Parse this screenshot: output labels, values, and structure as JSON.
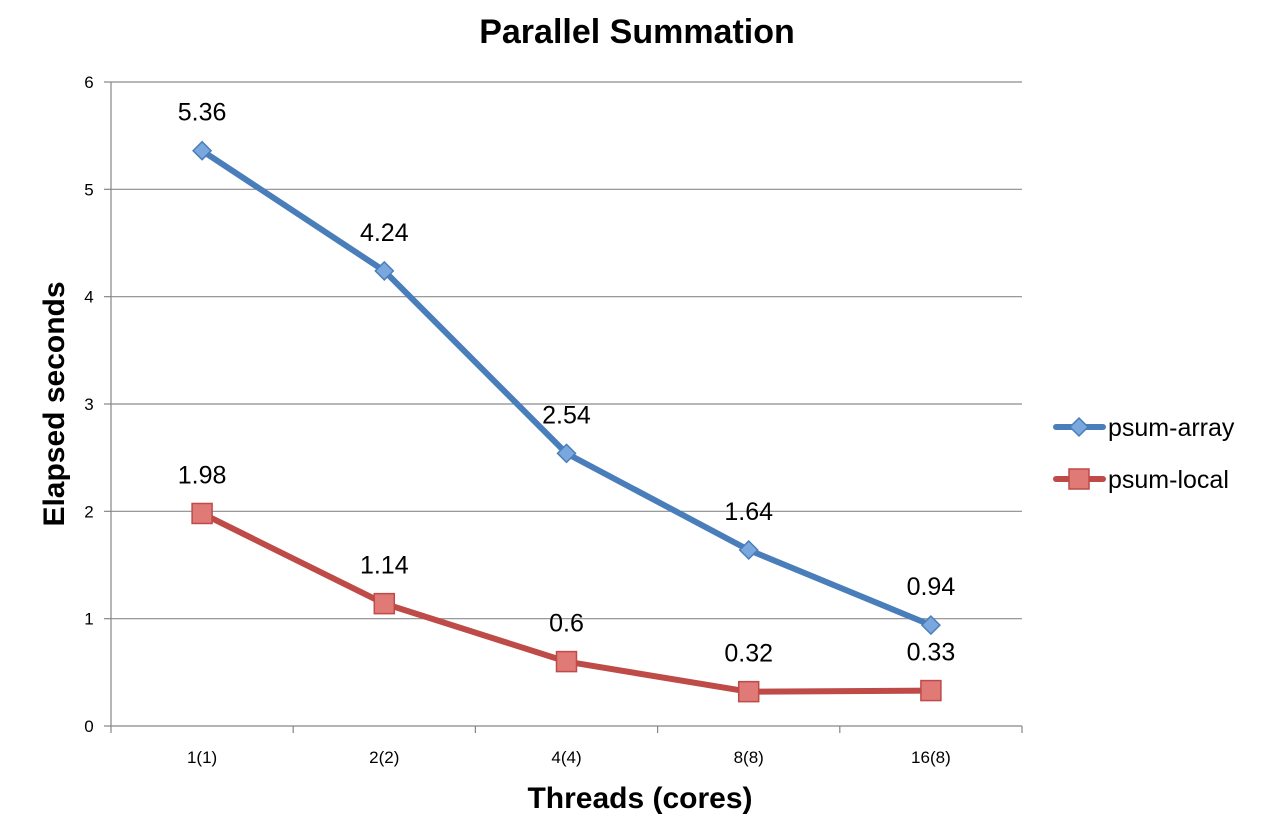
{
  "chart_data": {
    "type": "line",
    "title": "Parallel Summation",
    "xlabel": "Threads (cores)",
    "ylabel": "Elapsed seconds",
    "categories": [
      "1(1)",
      "2(2)",
      "4(4)",
      "8(8)",
      "16(8)"
    ],
    "ylim": [
      0,
      6
    ],
    "yticks": [
      0,
      1,
      2,
      3,
      4,
      5,
      6
    ],
    "grid": true,
    "legend_position": "right",
    "series": [
      {
        "name": "psum-array",
        "values": [
          5.36,
          4.24,
          2.54,
          1.64,
          0.94
        ],
        "labels": [
          "5.36",
          "4.24",
          "2.54",
          "1.64",
          "0.94"
        ],
        "color": "#4a7ebb",
        "marker": "diamond"
      },
      {
        "name": "psum-local",
        "values": [
          1.98,
          1.14,
          0.6,
          0.32,
          0.33
        ],
        "labels": [
          "1.98",
          "1.14",
          "0.6",
          "0.32",
          "0.33"
        ],
        "color": "#be4b48",
        "marker": "square"
      }
    ]
  }
}
